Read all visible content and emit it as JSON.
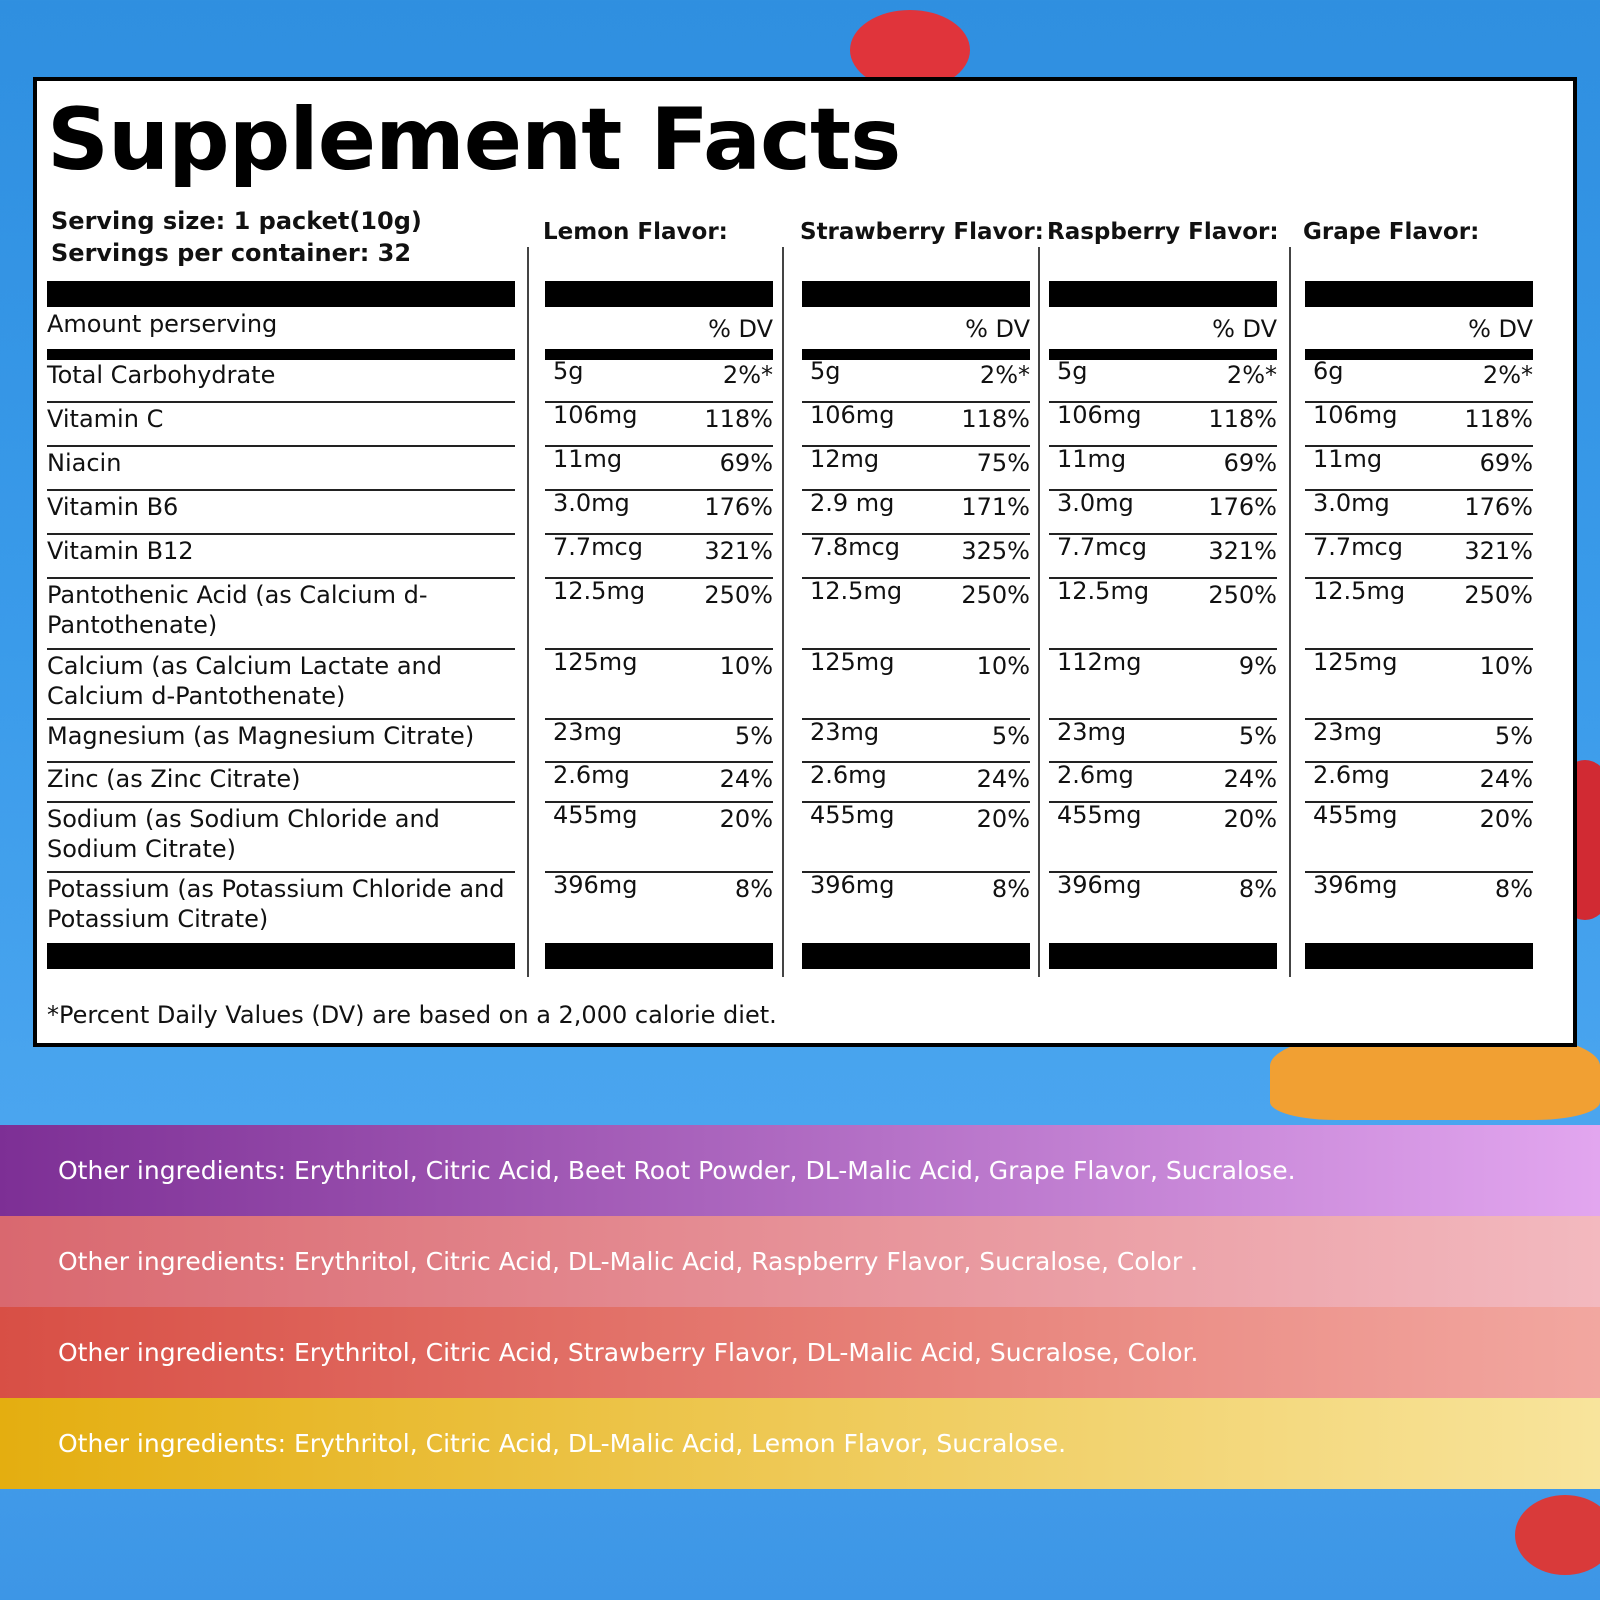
{
  "title": "Supplement Facts",
  "serving": {
    "size": "Serving size: 1 packet(10g)",
    "per_container": "Servings per container: 32"
  },
  "amount_header": "Amount perserving",
  "dv_header": "% DV",
  "nutrients": [
    "Total Carbohydrate",
    "Vitamin  C",
    "Niacin",
    "Vitamin B6",
    "Vitamin B12",
    "Pantothenic Acid (as Calcium d-Pantothenate)",
    "Calcium (as Calcium Lactate and Calcium d-Pantothenate)",
    "Magnesium (as Magnesium Citrate)",
    "Zinc (as Zinc Citrate)",
    "Sodium (as Sodium Chloride and Sodium Citrate)",
    "Potassium (as Potassium Chloride and Potassium Citrate)"
  ],
  "flavors": [
    {
      "name": "Lemon Flavor:",
      "rows": [
        [
          "5g",
          "2%*"
        ],
        [
          "106mg",
          "118%"
        ],
        [
          "11mg",
          "69%"
        ],
        [
          "3.0mg",
          "176%"
        ],
        [
          "7.7mcg",
          "321%"
        ],
        [
          "12.5mg",
          "250%"
        ],
        [
          "125mg",
          "10%"
        ],
        [
          "23mg",
          "5%"
        ],
        [
          "2.6mg",
          "24%"
        ],
        [
          "455mg",
          "20%"
        ],
        [
          "396mg",
          "8%"
        ]
      ]
    },
    {
      "name": "Strawberry Flavor:",
      "rows": [
        [
          "5g",
          "2%*"
        ],
        [
          "106mg",
          "118%"
        ],
        [
          "12mg",
          "75%"
        ],
        [
          "2.9 mg",
          "171%"
        ],
        [
          "7.8mcg",
          "325%"
        ],
        [
          "12.5mg",
          "250%"
        ],
        [
          "125mg",
          "10%"
        ],
        [
          "23mg",
          "5%"
        ],
        [
          "2.6mg",
          "24%"
        ],
        [
          "455mg",
          "20%"
        ],
        [
          "396mg",
          "8%"
        ]
      ]
    },
    {
      "name": "Raspberry Flavor:",
      "rows": [
        [
          "5g",
          "2%*"
        ],
        [
          "106mg",
          "118%"
        ],
        [
          "11mg",
          "69%"
        ],
        [
          "3.0mg",
          "176%"
        ],
        [
          "7.7mcg",
          "321%"
        ],
        [
          "12.5mg",
          "250%"
        ],
        [
          "112mg",
          "9%"
        ],
        [
          "23mg",
          "5%"
        ],
        [
          "2.6mg",
          "24%"
        ],
        [
          "455mg",
          "20%"
        ],
        [
          "396mg",
          "8%"
        ]
      ]
    },
    {
      "name": "Grape Flavor:",
      "rows": [
        [
          "6g",
          "2%*"
        ],
        [
          "106mg",
          "118%"
        ],
        [
          "11mg",
          "69%"
        ],
        [
          "3.0mg",
          "176%"
        ],
        [
          "7.7mcg",
          "321%"
        ],
        [
          "12.5mg",
          "250%"
        ],
        [
          "125mg",
          "10%"
        ],
        [
          "23mg",
          "5%"
        ],
        [
          "2.6mg",
          "24%"
        ],
        [
          "455mg",
          "20%"
        ],
        [
          "396mg",
          "8%"
        ]
      ]
    }
  ],
  "footnote": "*Percent Daily Values (DV) are based on a 2,000 calorie diet.",
  "ingredient_bands": [
    {
      "text": "Other ingredients: Erythritol, Citric Acid, Beet Root Powder, DL-Malic Acid, Grape Flavor, Sucralose.",
      "color_start": "#7d2f95",
      "color_end": "#e2a6ef"
    },
    {
      "text": "Other ingredients: Erythritol, Citric Acid, DL-Malic Acid, Raspberry Flavor, Sucralose, Color .",
      "color_start": "#d9686f",
      "color_end": "#f3b9bf"
    },
    {
      "text": "Other ingredients: Erythritol, Citric Acid, Strawberry Flavor, DL-Malic Acid, Sucralose, Color.",
      "color_start": "#d84f45",
      "color_end": "#f2a7a0"
    },
    {
      "text": "Other ingredients: Erythritol, Citric Acid, DL-Malic Acid, Lemon Flavor, Sucralose.",
      "color_start": "#e4ae10",
      "color_end": "#f8e49c"
    }
  ]
}
